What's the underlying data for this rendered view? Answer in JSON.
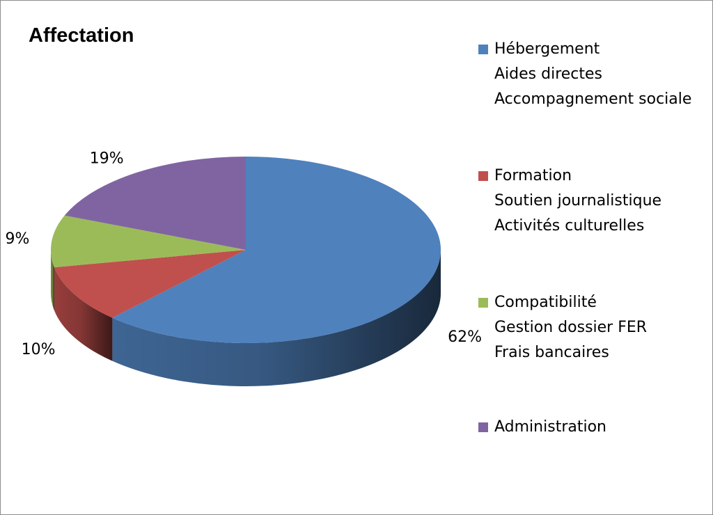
{
  "chart_data": {
    "type": "pie",
    "title": "Affectation",
    "three_d": true,
    "slices": [
      {
        "label": "Hébergement / Aides directes / Accompagnement sociale",
        "value": 62,
        "value_label": "62%",
        "color": "#4F81BD"
      },
      {
        "label": "Formation / Soutien journalistique / Activités culturelles",
        "value": 10,
        "value_label": "10%",
        "color": "#C0504D"
      },
      {
        "label": "Compatibilité / Gestion dossier FER / Frais bancaires",
        "value": 9,
        "value_label": "9%",
        "color": "#9BBB59"
      },
      {
        "label": "Administration",
        "value": 19,
        "value_label": "19%",
        "color": "#8064A2"
      }
    ],
    "legend": {
      "placement": "right",
      "entries": [
        {
          "lines": [
            "Hébergement",
            "Aides directes",
            "Accompagnement sociale"
          ],
          "color": "#4F81BD"
        },
        {
          "lines": [
            "Formation",
            "Soutien journalistique",
            "Activités culturelles"
          ],
          "color": "#C0504D"
        },
        {
          "lines": [
            "Compatibilité",
            "Gestion dossier FER",
            "Frais bancaires"
          ],
          "color": "#9BBB59"
        },
        {
          "lines": [
            "Administration"
          ],
          "color": "#8064A2"
        }
      ]
    }
  }
}
